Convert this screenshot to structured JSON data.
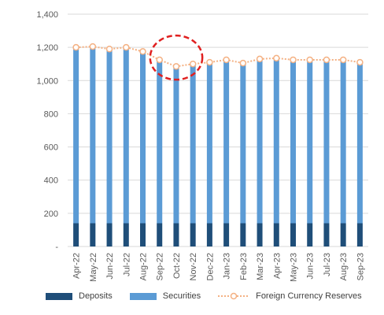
{
  "chart_data": {
    "type": "bar",
    "stacked": true,
    "categories": [
      "Apr-22",
      "May-22",
      "Jun-22",
      "Jul-22",
      "Aug-22",
      "Sep-22",
      "Oct-22",
      "Nov-22",
      "Dec-22",
      "Jan-23",
      "Feb-23",
      "Mar-23",
      "Apr-23",
      "May-23",
      "Jun-23",
      "Jul-23",
      "Aug-23",
      "Sep-23"
    ],
    "series": [
      {
        "name": "Deposits",
        "kind": "bar",
        "color": "#1f4e79",
        "values": [
          140,
          140,
          140,
          140,
          140,
          140,
          140,
          140,
          140,
          140,
          140,
          140,
          140,
          140,
          140,
          140,
          140,
          140
        ]
      },
      {
        "name": "Securities",
        "kind": "bar",
        "color": "#5b9bd5",
        "values": [
          1060,
          1065,
          1050,
          1060,
          1035,
          985,
          945,
          960,
          970,
          985,
          965,
          990,
          995,
          985,
          985,
          985,
          985,
          970
        ]
      },
      {
        "name": "Foreign Currency Reserves",
        "kind": "line",
        "color": "#f4b183",
        "values": [
          1200,
          1205,
          1190,
          1200,
          1175,
          1125,
          1085,
          1100,
          1110,
          1125,
          1105,
          1130,
          1135,
          1125,
          1125,
          1125,
          1125,
          1110
        ]
      }
    ],
    "y_ticks": [
      "-",
      "200",
      "400",
      "600",
      "800",
      "1,000",
      "1,200",
      "1,400"
    ],
    "ylim": [
      0,
      1400
    ],
    "grid": true,
    "legend_position": "bottom",
    "annotation": {
      "type": "dashed-circle",
      "color": "#e02020",
      "around_categories": [
        "Sep-22",
        "Oct-22",
        "Nov-22"
      ]
    }
  }
}
